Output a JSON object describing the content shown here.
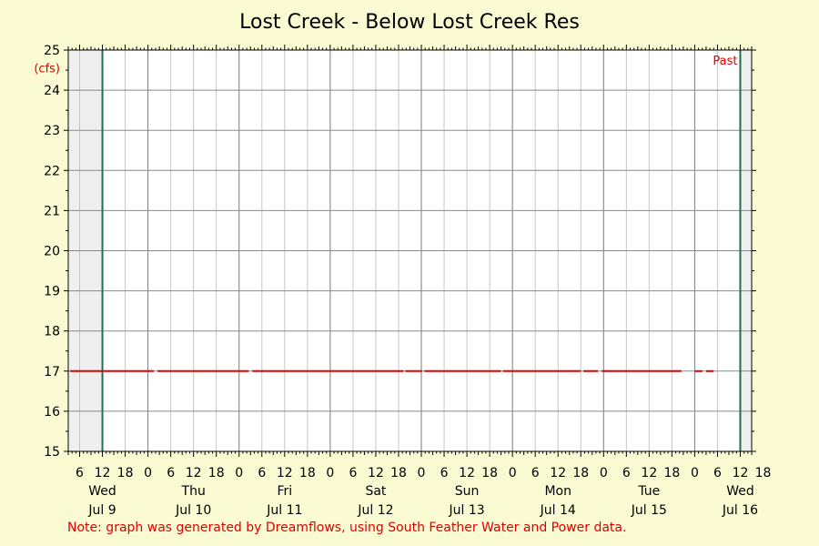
{
  "chart_data": {
    "type": "line",
    "title": "Lost Creek - Below Lost Creek Res",
    "ylabel": "(cfs)",
    "ylim": [
      15,
      25
    ],
    "yticks": [
      15,
      16,
      17,
      18,
      19,
      20,
      21,
      22,
      23,
      24,
      25
    ],
    "x_unit": "hours since Jul 9 00:00",
    "xlim": [
      3,
      183
    ],
    "hour_labels": [
      {
        "h": 6,
        "t": "6"
      },
      {
        "h": 12,
        "t": "12"
      },
      {
        "h": 18,
        "t": "18"
      },
      {
        "h": 24,
        "t": "0"
      },
      {
        "h": 30,
        "t": "6"
      },
      {
        "h": 36,
        "t": "12"
      },
      {
        "h": 42,
        "t": "18"
      },
      {
        "h": 48,
        "t": "0"
      },
      {
        "h": 54,
        "t": "6"
      },
      {
        "h": 60,
        "t": "12"
      },
      {
        "h": 66,
        "t": "18"
      },
      {
        "h": 72,
        "t": "0"
      },
      {
        "h": 78,
        "t": "6"
      },
      {
        "h": 84,
        "t": "12"
      },
      {
        "h": 90,
        "t": "18"
      },
      {
        "h": 96,
        "t": "0"
      },
      {
        "h": 102,
        "t": "6"
      },
      {
        "h": 108,
        "t": "12"
      },
      {
        "h": 114,
        "t": "18"
      },
      {
        "h": 120,
        "t": "0"
      },
      {
        "h": 126,
        "t": "6"
      },
      {
        "h": 132,
        "t": "12"
      },
      {
        "h": 138,
        "t": "18"
      },
      {
        "h": 144,
        "t": "0"
      },
      {
        "h": 150,
        "t": "6"
      },
      {
        "h": 156,
        "t": "12"
      },
      {
        "h": 162,
        "t": "18"
      },
      {
        "h": 168,
        "t": "0"
      },
      {
        "h": 174,
        "t": "6"
      },
      {
        "h": 180,
        "t": "12"
      },
      {
        "h": 186,
        "t": "18"
      }
    ],
    "day_labels": [
      {
        "h": 12,
        "day": "Wed",
        "date": "Jul 9"
      },
      {
        "h": 36,
        "day": "Thu",
        "date": "Jul 10"
      },
      {
        "h": 60,
        "day": "Fri",
        "date": "Jul 11"
      },
      {
        "h": 84,
        "day": "Sat",
        "date": "Jul 12"
      },
      {
        "h": 108,
        "day": "Sun",
        "date": "Jul 13"
      },
      {
        "h": 132,
        "day": "Mon",
        "date": "Jul 14"
      },
      {
        "h": 156,
        "day": "Tue",
        "date": "Jul 15"
      },
      {
        "h": 180,
        "day": "Wed",
        "date": "Jul 16"
      }
    ],
    "past_marker": {
      "label": "Past",
      "start_h": 12,
      "end_h": 180
    },
    "grid": true,
    "series": [
      {
        "color": "#e00000",
        "segments": [
          {
            "x": [
              3.5,
              25.5
            ],
            "y": [
              17,
              17
            ]
          },
          {
            "x": [
              26.5,
              50.5
            ],
            "y": [
              17,
              17
            ]
          },
          {
            "x": [
              51.5,
              91.3
            ],
            "y": [
              17,
              17
            ]
          },
          {
            "x": [
              91.8,
              96.2
            ],
            "y": [
              17,
              17
            ]
          },
          {
            "x": [
              96.8,
              117
            ],
            "y": [
              17,
              17
            ]
          },
          {
            "x": [
              117.5,
              138
            ],
            "y": [
              17,
              17
            ]
          },
          {
            "x": [
              138.7,
              142.5
            ],
            "y": [
              17,
              17
            ]
          },
          {
            "x": [
              143.5,
              164.5
            ],
            "y": [
              17,
              17
            ]
          },
          {
            "x": [
              168,
              170
            ],
            "y": [
              17,
              17
            ]
          },
          {
            "x": [
              171,
              173
            ],
            "y": [
              17,
              17
            ]
          }
        ]
      }
    ]
  },
  "footer_note": "Note: graph was generated by Dreamflows, using South Feather Water and Power data."
}
